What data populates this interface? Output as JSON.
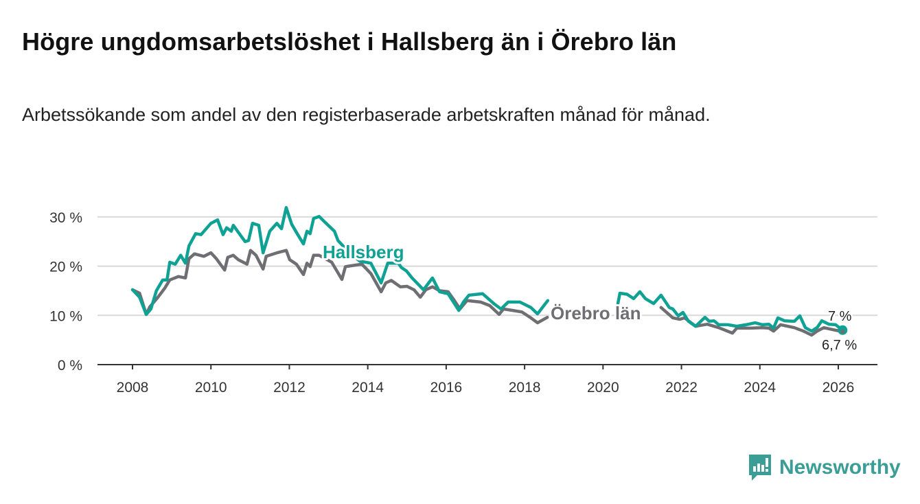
{
  "chart_data": {
    "type": "line",
    "title": "Högre ungdomsarbetslöshet i Hallsberg än i Örebro län",
    "subtitle": "Arbetssökande som andel av den registerbaserade arbetskraften månad för månad.",
    "xlabel": "",
    "ylabel": "",
    "xlim": [
      2007.7,
      2026.9
    ],
    "ylim": [
      0,
      32
    ],
    "x_ticks": [
      2008,
      2010,
      2012,
      2014,
      2016,
      2018,
      2020,
      2022,
      2024,
      2026
    ],
    "x_tick_labels": [
      "2008",
      "2010",
      "2012",
      "2014",
      "2016",
      "2018",
      "2020",
      "2022",
      "2024",
      "2026"
    ],
    "y_ticks": [
      0,
      10,
      20,
      30
    ],
    "y_tick_labels": [
      "0 %",
      "10 %",
      "20 %",
      "30 %"
    ],
    "grid": "horizontal",
    "series": [
      {
        "name": "Hallsberg",
        "color": "#0fa193",
        "end_label": "7 %",
        "points": [
          [
            2008.0,
            15.2
          ],
          [
            2008.18,
            13.7
          ],
          [
            2008.35,
            10.2
          ],
          [
            2008.47,
            11.3
          ],
          [
            2008.61,
            15.0
          ],
          [
            2008.77,
            17.2
          ],
          [
            2008.88,
            17.2
          ],
          [
            2008.95,
            20.8
          ],
          [
            2009.09,
            20.4
          ],
          [
            2009.23,
            22.2
          ],
          [
            2009.35,
            20.6
          ],
          [
            2009.44,
            24.1
          ],
          [
            2009.61,
            26.6
          ],
          [
            2009.75,
            26.4
          ],
          [
            2010.0,
            28.7
          ],
          [
            2010.17,
            29.4
          ],
          [
            2010.31,
            26.4
          ],
          [
            2010.4,
            27.8
          ],
          [
            2010.52,
            27.1
          ],
          [
            2010.57,
            28.3
          ],
          [
            2010.87,
            25.0
          ],
          [
            2010.96,
            25.2
          ],
          [
            2011.06,
            28.7
          ],
          [
            2011.22,
            28.3
          ],
          [
            2011.33,
            22.7
          ],
          [
            2011.5,
            27.1
          ],
          [
            2011.68,
            28.7
          ],
          [
            2011.8,
            27.6
          ],
          [
            2011.92,
            31.9
          ],
          [
            2012.06,
            28.5
          ],
          [
            2012.2,
            26.6
          ],
          [
            2012.36,
            24.5
          ],
          [
            2012.45,
            27.1
          ],
          [
            2012.53,
            26.6
          ],
          [
            2012.62,
            29.7
          ],
          [
            2012.76,
            30.1
          ],
          [
            2012.9,
            29.0
          ],
          [
            2013.15,
            27.1
          ],
          [
            2013.24,
            25.2
          ],
          [
            2013.5,
            23.0
          ],
          [
            2013.8,
            21.0
          ],
          [
            2014.08,
            20.6
          ],
          [
            2014.34,
            16.6
          ],
          [
            2014.51,
            20.6
          ],
          [
            2014.78,
            20.6
          ],
          [
            2014.86,
            19.7
          ],
          [
            2014.99,
            19.0
          ],
          [
            2015.13,
            17.6
          ],
          [
            2015.3,
            16.2
          ],
          [
            2015.42,
            15.2
          ],
          [
            2015.65,
            17.6
          ],
          [
            2015.83,
            14.8
          ],
          [
            2016.05,
            14.4
          ],
          [
            2016.32,
            11.0
          ],
          [
            2016.44,
            12.7
          ],
          [
            2016.58,
            14.1
          ],
          [
            2016.93,
            14.4
          ],
          [
            2017.23,
            12.3
          ],
          [
            2017.4,
            11.3
          ],
          [
            2017.58,
            12.7
          ],
          [
            2017.88,
            12.7
          ],
          [
            2018.16,
            11.6
          ],
          [
            2018.33,
            10.3
          ],
          [
            2018.59,
            13.0
          ],
          null,
          [
            2020.38,
            12.4
          ],
          [
            2020.43,
            14.5
          ],
          [
            2020.61,
            14.3
          ],
          [
            2020.78,
            13.4
          ],
          [
            2020.94,
            14.8
          ],
          [
            2021.08,
            13.4
          ],
          [
            2021.29,
            12.4
          ],
          [
            2021.48,
            14.1
          ],
          [
            2021.69,
            11.6
          ],
          [
            2021.78,
            11.3
          ],
          [
            2021.92,
            9.9
          ],
          [
            2022.04,
            10.6
          ],
          [
            2022.18,
            8.8
          ],
          [
            2022.36,
            7.8
          ],
          [
            2022.6,
            9.6
          ],
          [
            2022.71,
            8.8
          ],
          [
            2022.83,
            8.9
          ],
          [
            2022.95,
            8.1
          ],
          [
            2023.18,
            8.1
          ],
          [
            2023.41,
            7.8
          ],
          [
            2023.65,
            8.1
          ],
          [
            2023.88,
            8.5
          ],
          [
            2024.06,
            8.1
          ],
          [
            2024.23,
            8.2
          ],
          [
            2024.35,
            7.4
          ],
          [
            2024.46,
            9.5
          ],
          [
            2024.63,
            8.9
          ],
          [
            2024.88,
            8.8
          ],
          [
            2025.02,
            9.9
          ],
          [
            2025.16,
            7.5
          ],
          [
            2025.32,
            6.8
          ],
          [
            2025.46,
            7.5
          ],
          [
            2025.58,
            8.9
          ],
          [
            2025.76,
            8.2
          ],
          [
            2025.93,
            8.1
          ],
          [
            2026.11,
            7.0
          ]
        ]
      },
      {
        "name": "Örebro län",
        "color": "#6f6e73",
        "end_label": "6,7 %",
        "points": [
          [
            2008.0,
            15.2
          ],
          [
            2008.18,
            14.5
          ],
          [
            2008.35,
            10.2
          ],
          [
            2008.44,
            11.7
          ],
          [
            2008.65,
            13.7
          ],
          [
            2008.82,
            15.5
          ],
          [
            2008.95,
            17.2
          ],
          [
            2009.17,
            17.9
          ],
          [
            2009.35,
            17.6
          ],
          [
            2009.44,
            21.5
          ],
          [
            2009.58,
            22.5
          ],
          [
            2009.82,
            22.0
          ],
          [
            2010.0,
            22.7
          ],
          [
            2010.14,
            21.5
          ],
          [
            2010.35,
            19.2
          ],
          [
            2010.43,
            21.8
          ],
          [
            2010.57,
            22.2
          ],
          [
            2010.7,
            21.3
          ],
          [
            2010.92,
            20.4
          ],
          [
            2011.01,
            23.2
          ],
          [
            2011.15,
            22.2
          ],
          [
            2011.33,
            19.4
          ],
          [
            2011.41,
            22.0
          ],
          [
            2011.68,
            22.7
          ],
          [
            2011.92,
            23.2
          ],
          [
            2012.01,
            21.3
          ],
          [
            2012.18,
            20.4
          ],
          [
            2012.36,
            18.3
          ],
          [
            2012.45,
            20.6
          ],
          [
            2012.53,
            19.9
          ],
          [
            2012.62,
            22.2
          ],
          [
            2012.76,
            22.2
          ],
          [
            2013.08,
            20.8
          ],
          [
            2013.34,
            17.3
          ],
          [
            2013.43,
            19.9
          ],
          [
            2013.85,
            20.4
          ],
          [
            2014.08,
            18.5
          ],
          [
            2014.34,
            14.8
          ],
          [
            2014.46,
            16.6
          ],
          [
            2014.6,
            17.1
          ],
          [
            2014.83,
            15.8
          ],
          [
            2015.0,
            15.9
          ],
          [
            2015.18,
            15.2
          ],
          [
            2015.34,
            13.7
          ],
          [
            2015.48,
            15.2
          ],
          [
            2015.65,
            15.8
          ],
          [
            2015.83,
            15.0
          ],
          [
            2016.05,
            14.8
          ],
          [
            2016.21,
            13.0
          ],
          [
            2016.35,
            11.3
          ],
          [
            2016.53,
            13.0
          ],
          [
            2016.88,
            12.7
          ],
          [
            2017.11,
            12.0
          ],
          [
            2017.35,
            10.2
          ],
          [
            2017.46,
            11.3
          ],
          [
            2017.7,
            11.0
          ],
          [
            2017.93,
            10.7
          ],
          [
            2018.16,
            9.5
          ],
          [
            2018.33,
            8.5
          ],
          [
            2018.58,
            9.6
          ],
          null,
          [
            2021.48,
            11.6
          ],
          [
            2021.78,
            9.5
          ],
          [
            2021.96,
            9.2
          ],
          [
            2022.08,
            9.5
          ],
          [
            2022.36,
            7.8
          ],
          [
            2022.66,
            8.2
          ],
          [
            2022.95,
            7.5
          ],
          [
            2023.3,
            6.4
          ],
          [
            2023.41,
            7.4
          ],
          [
            2023.76,
            7.4
          ],
          [
            2024.06,
            7.5
          ],
          [
            2024.23,
            7.4
          ],
          [
            2024.35,
            6.8
          ],
          [
            2024.53,
            8.1
          ],
          [
            2024.88,
            7.5
          ],
          [
            2025.11,
            6.8
          ],
          [
            2025.32,
            6.0
          ],
          [
            2025.46,
            6.8
          ],
          [
            2025.63,
            7.5
          ],
          [
            2025.86,
            7.1
          ],
          [
            2026.11,
            6.7
          ]
        ]
      }
    ]
  },
  "branding": {
    "name": "Newsworthy",
    "color": "#3a9d96"
  }
}
